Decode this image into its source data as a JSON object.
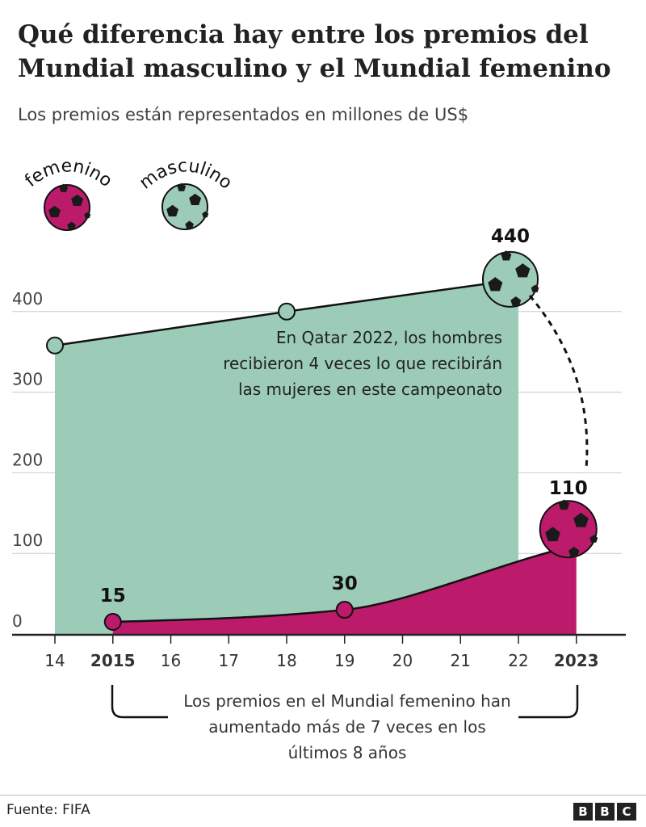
{
  "header": {
    "title": "Qué diferencia hay entre los premios del Mundial masculino y el Mundial femenino",
    "subtitle": "Los premios están representados en millones de US$"
  },
  "chart_data": {
    "type": "area",
    "title": "Qué diferencia hay entre los premios del Mundial masculino y el Mundial femenino",
    "subtitle": "Los premios están representados en millones de US$",
    "xlim": [
      2014,
      2023
    ],
    "ylim": [
      0,
      440
    ],
    "x_ticks": [
      {
        "value": 2014,
        "label": "14"
      },
      {
        "value": 2015,
        "label": "2015"
      },
      {
        "value": 2016,
        "label": "16"
      },
      {
        "value": 2017,
        "label": "17"
      },
      {
        "value": 2018,
        "label": "18"
      },
      {
        "value": 2019,
        "label": "19"
      },
      {
        "value": 2020,
        "label": "20"
      },
      {
        "value": 2021,
        "label": "21"
      },
      {
        "value": 2022,
        "label": "22"
      },
      {
        "value": 2023,
        "label": "2023"
      }
    ],
    "y_ticks": [
      0,
      100,
      200,
      300,
      400
    ],
    "grid": true,
    "series": [
      {
        "name": "masculino",
        "color": "#9ccbb7",
        "x": [
          2014,
          2018,
          2022
        ],
        "y": [
          358,
          400,
          440
        ]
      },
      {
        "name": "femenino",
        "color": "#bc1a6a",
        "x": [
          2015,
          2019,
          2023
        ],
        "y": [
          15,
          30,
          110
        ]
      }
    ],
    "data_labels": [
      {
        "series": "masculino",
        "x": 2022,
        "text": "440"
      },
      {
        "series": "femenino",
        "x": 2015,
        "text": "15"
      },
      {
        "series": "femenino",
        "x": 2019,
        "text": "30"
      },
      {
        "series": "femenino",
        "x": 2023,
        "text": "110"
      }
    ],
    "legend": {
      "placement": "top-left",
      "items": [
        "femenino",
        "masculino"
      ]
    },
    "annotations": {
      "men": "En Qatar 2022, los hombres recibieron 4 veces lo que recibirán las mujeres en este campeonato",
      "women": "Los premios en el Mundial femenino han aumentado más de 7 veces en los últimos 8 años"
    }
  },
  "footer": {
    "source": "Fuente: FIFA",
    "logo": "BBC"
  }
}
